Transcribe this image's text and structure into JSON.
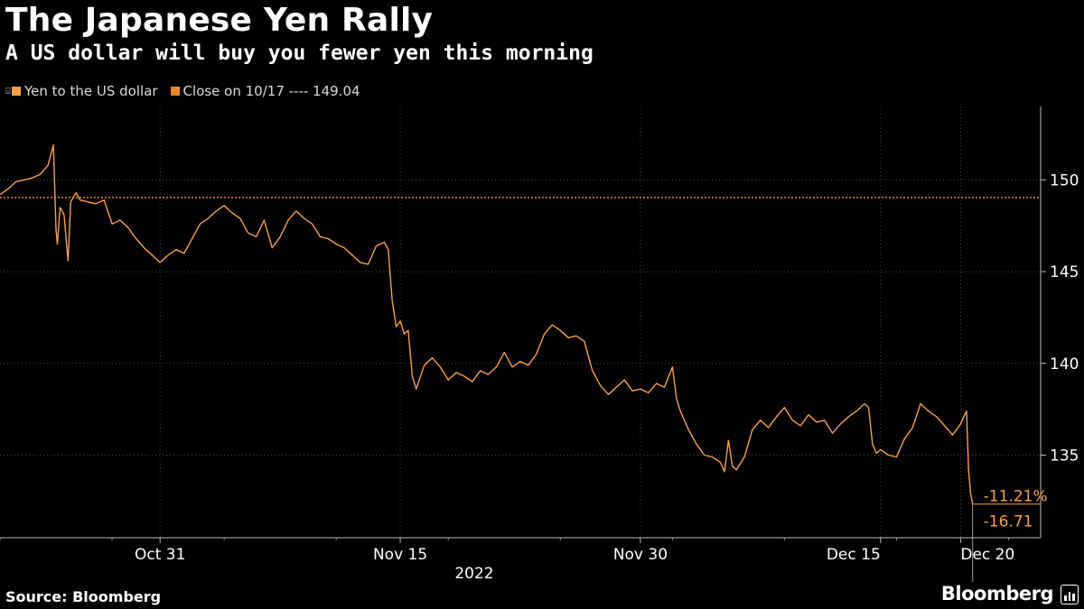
{
  "title": "The Japanese Yen Rally",
  "subtitle": "A US dollar will buy you fewer yen this morning",
  "legend": [
    {
      "label": "Yen to the US dollar",
      "color": "#f6a04a"
    },
    {
      "label": "Close on 10/17 ---- 149.04",
      "color": "#e8882a"
    }
  ],
  "source": "Source: Bloomberg",
  "brand": "Bloomberg",
  "colors": {
    "background": "#000000",
    "line": "#f6a04a",
    "reference": "#e8882a",
    "grid": "#4a4a4a",
    "text": "#ffffff"
  },
  "chart_data": {
    "type": "line",
    "xlabel": "2022",
    "ylabel": "",
    "ylim": [
      130.5,
      154
    ],
    "y_axis_position": "right",
    "y_ticks": [
      135,
      140,
      145,
      150
    ],
    "x_tick_labels": [
      {
        "label": "Oct 31",
        "date": "2022-10-31"
      },
      {
        "label": "Nov 15",
        "date": "2022-11-15"
      },
      {
        "label": "Nov 30",
        "date": "2022-11-30"
      },
      {
        "label": "Dec 15",
        "date": "2022-12-15"
      },
      {
        "label": "Dec 20",
        "date": "2022-12-20"
      }
    ],
    "x_range": [
      "2022-10-21",
      "2022-12-25"
    ],
    "grid": true,
    "series": [
      {
        "name": "Yen to the US dollar",
        "points": [
          [
            "2022-10-21",
            149.2
          ],
          [
            "2022-10-21T12:00",
            149.5
          ],
          [
            "2022-10-22",
            149.9
          ],
          [
            "2022-10-22T12:00",
            150.0
          ],
          [
            "2022-10-23",
            150.1
          ],
          [
            "2022-10-23T12:00",
            150.3
          ],
          [
            "2022-10-24",
            150.8
          ],
          [
            "2022-10-24T08:00",
            151.9
          ],
          [
            "2022-10-24T12:00",
            147.3
          ],
          [
            "2022-10-24T14:00",
            146.5
          ],
          [
            "2022-10-24T18:00",
            148.5
          ],
          [
            "2022-10-25",
            148.1
          ],
          [
            "2022-10-25T06:00",
            145.6
          ],
          [
            "2022-10-25T10:00",
            148.8
          ],
          [
            "2022-10-25T18:00",
            149.3
          ],
          [
            "2022-10-26",
            148.9
          ],
          [
            "2022-10-26T12:00",
            148.8
          ],
          [
            "2022-10-27",
            148.7
          ],
          [
            "2022-10-27T12:00",
            148.9
          ],
          [
            "2022-10-28",
            147.6
          ],
          [
            "2022-10-28T12:00",
            147.8
          ],
          [
            "2022-10-29",
            147.4
          ],
          [
            "2022-10-29T12:00",
            146.8
          ],
          [
            "2022-10-30",
            146.3
          ],
          [
            "2022-10-30T12:00",
            145.9
          ],
          [
            "2022-10-31",
            145.5
          ],
          [
            "2022-10-31T12:00",
            145.9
          ],
          [
            "2022-11-01",
            146.2
          ],
          [
            "2022-11-01T12:00",
            146.0
          ],
          [
            "2022-11-02",
            146.8
          ],
          [
            "2022-11-02T12:00",
            147.6
          ],
          [
            "2022-11-03",
            147.9
          ],
          [
            "2022-11-03T12:00",
            148.3
          ],
          [
            "2022-11-04",
            148.6
          ],
          [
            "2022-11-04T12:00",
            148.2
          ],
          [
            "2022-11-05",
            147.9
          ],
          [
            "2022-11-05T12:00",
            147.1
          ],
          [
            "2022-11-06",
            146.9
          ],
          [
            "2022-11-06T12:00",
            147.8
          ],
          [
            "2022-11-07",
            146.3
          ],
          [
            "2022-11-07T12:00",
            146.9
          ],
          [
            "2022-11-08",
            147.8
          ],
          [
            "2022-11-08T12:00",
            148.3
          ],
          [
            "2022-11-09",
            147.9
          ],
          [
            "2022-11-09T12:00",
            147.6
          ],
          [
            "2022-11-10",
            146.9
          ],
          [
            "2022-11-10T12:00",
            146.8
          ],
          [
            "2022-11-11",
            146.5
          ],
          [
            "2022-11-11T12:00",
            146.3
          ],
          [
            "2022-11-12",
            145.9
          ],
          [
            "2022-11-12T12:00",
            145.5
          ],
          [
            "2022-11-13",
            145.4
          ],
          [
            "2022-11-13T12:00",
            146.4
          ],
          [
            "2022-11-14",
            146.6
          ],
          [
            "2022-11-14T06:00",
            146.2
          ],
          [
            "2022-11-14T12:00",
            143.4
          ],
          [
            "2022-11-14T18:00",
            142.0
          ],
          [
            "2022-11-15",
            142.3
          ],
          [
            "2022-11-15T06:00",
            141.6
          ],
          [
            "2022-11-15T12:00",
            141.8
          ],
          [
            "2022-11-15T18:00",
            139.3
          ],
          [
            "2022-11-16",
            138.6
          ],
          [
            "2022-11-16T12:00",
            139.9
          ],
          [
            "2022-11-17",
            140.3
          ],
          [
            "2022-11-17T12:00",
            139.8
          ],
          [
            "2022-11-18",
            139.1
          ],
          [
            "2022-11-18T12:00",
            139.5
          ],
          [
            "2022-11-19",
            139.3
          ],
          [
            "2022-11-19T12:00",
            139.0
          ],
          [
            "2022-11-20",
            139.6
          ],
          [
            "2022-11-20T12:00",
            139.4
          ],
          [
            "2022-11-21",
            139.8
          ],
          [
            "2022-11-21T12:00",
            140.6
          ],
          [
            "2022-11-22",
            139.8
          ],
          [
            "2022-11-22T12:00",
            140.1
          ],
          [
            "2022-11-23",
            139.9
          ],
          [
            "2022-11-23T12:00",
            140.5
          ],
          [
            "2022-11-24",
            141.6
          ],
          [
            "2022-11-24T12:00",
            142.1
          ],
          [
            "2022-11-25",
            141.8
          ],
          [
            "2022-11-25T12:00",
            141.4
          ],
          [
            "2022-11-26",
            141.5
          ],
          [
            "2022-11-26T12:00",
            141.2
          ],
          [
            "2022-11-27",
            139.6
          ],
          [
            "2022-11-27T12:00",
            138.8
          ],
          [
            "2022-11-28",
            138.3
          ],
          [
            "2022-11-28T12:00",
            138.7
          ],
          [
            "2022-11-29",
            139.1
          ],
          [
            "2022-11-29T12:00",
            138.5
          ],
          [
            "2022-11-30",
            138.6
          ],
          [
            "2022-11-30T12:00",
            138.4
          ],
          [
            "2022-12-01",
            138.9
          ],
          [
            "2022-12-01T12:00",
            138.7
          ],
          [
            "2022-12-02",
            139.8
          ],
          [
            "2022-12-02T06:00",
            138.1
          ],
          [
            "2022-12-02T12:00",
            137.4
          ],
          [
            "2022-12-03",
            136.4
          ],
          [
            "2022-12-03T12:00",
            135.6
          ],
          [
            "2022-12-04",
            135.0
          ],
          [
            "2022-12-04T12:00",
            134.9
          ],
          [
            "2022-12-05",
            134.6
          ],
          [
            "2022-12-05T06:00",
            134.1
          ],
          [
            "2022-12-05T12:00",
            135.8
          ],
          [
            "2022-12-05T18:00",
            134.4
          ],
          [
            "2022-12-06",
            134.2
          ],
          [
            "2022-12-06T12:00",
            134.9
          ],
          [
            "2022-12-07",
            136.4
          ],
          [
            "2022-12-07T12:00",
            136.9
          ],
          [
            "2022-12-08",
            136.5
          ],
          [
            "2022-12-08T12:00",
            137.1
          ],
          [
            "2022-12-09",
            137.6
          ],
          [
            "2022-12-09T12:00",
            136.9
          ],
          [
            "2022-12-10",
            136.6
          ],
          [
            "2022-12-10T12:00",
            137.2
          ],
          [
            "2022-12-11",
            136.8
          ],
          [
            "2022-12-11T12:00",
            136.9
          ],
          [
            "2022-12-12",
            136.2
          ],
          [
            "2022-12-12T12:00",
            136.7
          ],
          [
            "2022-12-13",
            137.1
          ],
          [
            "2022-12-13T12:00",
            137.4
          ],
          [
            "2022-12-14",
            137.8
          ],
          [
            "2022-12-14T06:00",
            137.6
          ],
          [
            "2022-12-14T12:00",
            135.6
          ],
          [
            "2022-12-14T18:00",
            135.1
          ],
          [
            "2022-12-15",
            135.3
          ],
          [
            "2022-12-15T12:00",
            135.0
          ],
          [
            "2022-12-16",
            134.9
          ],
          [
            "2022-12-16T12:00",
            135.9
          ],
          [
            "2022-12-17",
            136.5
          ],
          [
            "2022-12-17T12:00",
            137.8
          ],
          [
            "2022-12-18",
            137.4
          ],
          [
            "2022-12-18T12:00",
            137.1
          ],
          [
            "2022-12-19",
            136.6
          ],
          [
            "2022-12-19T12:00",
            136.1
          ],
          [
            "2022-12-20",
            136.7
          ],
          [
            "2022-12-20T06:00",
            137.2
          ],
          [
            "2022-12-20T09:00",
            137.4
          ],
          [
            "2022-12-20T12:00",
            134.2
          ],
          [
            "2022-12-20T15:00",
            132.9
          ],
          [
            "2022-12-20T18:00",
            132.33
          ]
        ]
      },
      {
        "name": "Close on 10/17",
        "value": 149.04,
        "style": "dotted"
      }
    ],
    "annotations": [
      {
        "label": "-11.21%",
        "value": 132.6
      },
      {
        "label": "-16.71",
        "value": 131.6
      }
    ]
  }
}
